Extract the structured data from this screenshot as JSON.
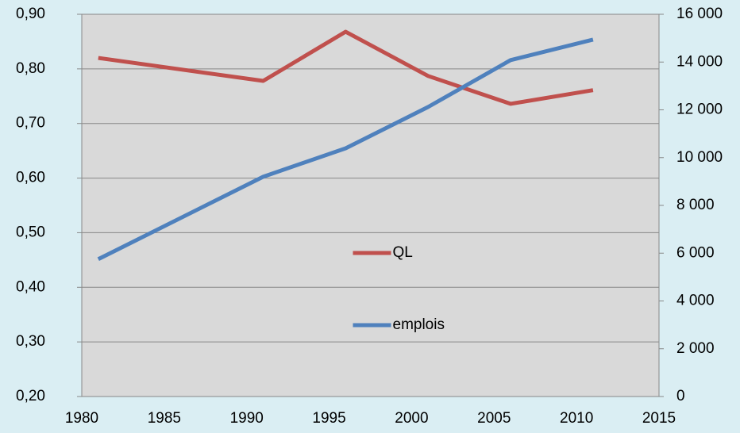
{
  "chart_data": {
    "type": "line",
    "x": [
      1981,
      1991,
      1996,
      2001,
      2006,
      2011
    ],
    "series": [
      {
        "name": "QL",
        "color": "#c0504d",
        "values": [
          0.82,
          0.778,
          0.868,
          0.787,
          0.736,
          0.761
        ]
      },
      {
        "name": "emplois",
        "color": "#4f81bd",
        "axis": "y2",
        "values": [
          5750,
          9200,
          10390,
          12120,
          14080,
          14940
        ]
      }
    ],
    "xlim": [
      1980,
      2015
    ],
    "xticks": [
      1980,
      1985,
      1990,
      1995,
      2000,
      2005,
      2010,
      2015
    ],
    "ylim": [
      0.2,
      0.9
    ],
    "yticks": [
      {
        "value": 0.2,
        "label": "0,20"
      },
      {
        "value": 0.3,
        "label": "0,30"
      },
      {
        "value": 0.4,
        "label": "0,40"
      },
      {
        "value": 0.5,
        "label": "0,50"
      },
      {
        "value": 0.6,
        "label": "0,60"
      },
      {
        "value": 0.7,
        "label": "0,70"
      },
      {
        "value": 0.8,
        "label": "0,80"
      },
      {
        "value": 0.9,
        "label": "0,90"
      }
    ],
    "y2lim": [
      0,
      16000
    ],
    "y2ticks": [
      0,
      {
        "value": 2000,
        "label": "2 000"
      },
      {
        "value": 4000,
        "label": "4 000"
      },
      {
        "value": 6000,
        "label": "6 000"
      },
      {
        "value": 8000,
        "label": "8 000"
      },
      {
        "value": 10000,
        "label": "10 000"
      },
      {
        "value": 12000,
        "label": "12 000"
      },
      {
        "value": 14000,
        "label": "14 000"
      },
      {
        "value": 16000,
        "label": "16 000"
      }
    ],
    "grid": true,
    "legend": "center"
  }
}
